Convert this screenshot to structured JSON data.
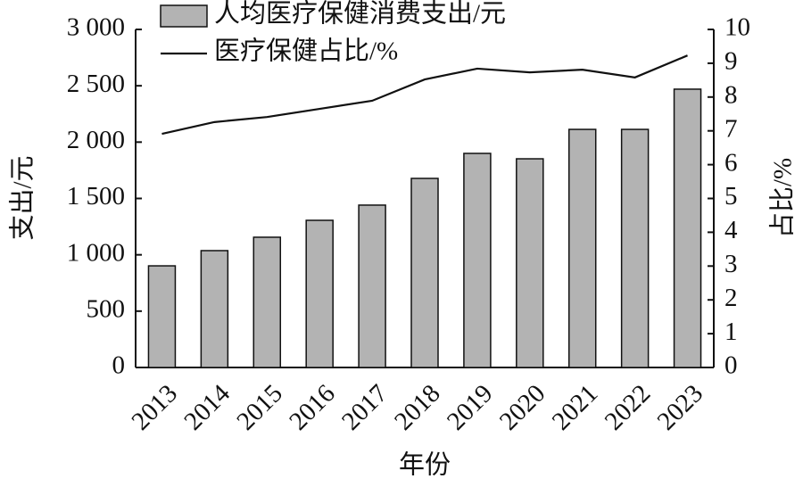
{
  "chart_data": {
    "type": "bar_line",
    "categories": [
      "2013",
      "2014",
      "2015",
      "2016",
      "2017",
      "2018",
      "2019",
      "2020",
      "2021",
      "2022",
      "2023"
    ],
    "series": [
      {
        "name": "人均医疗保健消费支出/元",
        "type": "bar",
        "color": "#b3b3b3",
        "values": [
          902,
          1037,
          1156,
          1306,
          1441,
          1678,
          1900,
          1852,
          2113,
          2113,
          2470
        ]
      },
      {
        "name": "医疗保健占比/%",
        "type": "line",
        "axis": "y2",
        "color": "#111111",
        "values": [
          6.91,
          7.26,
          7.41,
          7.65,
          7.89,
          8.52,
          8.84,
          8.73,
          8.81,
          8.58,
          9.23
        ]
      }
    ],
    "x_label": "年份",
    "y_label": "支出/元",
    "y2_label": "占比/%",
    "ylim": [
      0,
      3000
    ],
    "yticks": [
      0,
      500,
      {
        "value": 1000,
        "label": "1 000"
      },
      {
        "value": 1500,
        "label": "1 500"
      },
      {
        "value": 2000,
        "label": "2 000"
      },
      {
        "value": 2500,
        "label": "2 500"
      },
      {
        "value": 3000,
        "label": "3 000"
      }
    ],
    "y2lim": [
      0,
      10
    ],
    "y2ticks": [
      0,
      1,
      2,
      3,
      4,
      5,
      6,
      7,
      8,
      9,
      10
    ]
  }
}
